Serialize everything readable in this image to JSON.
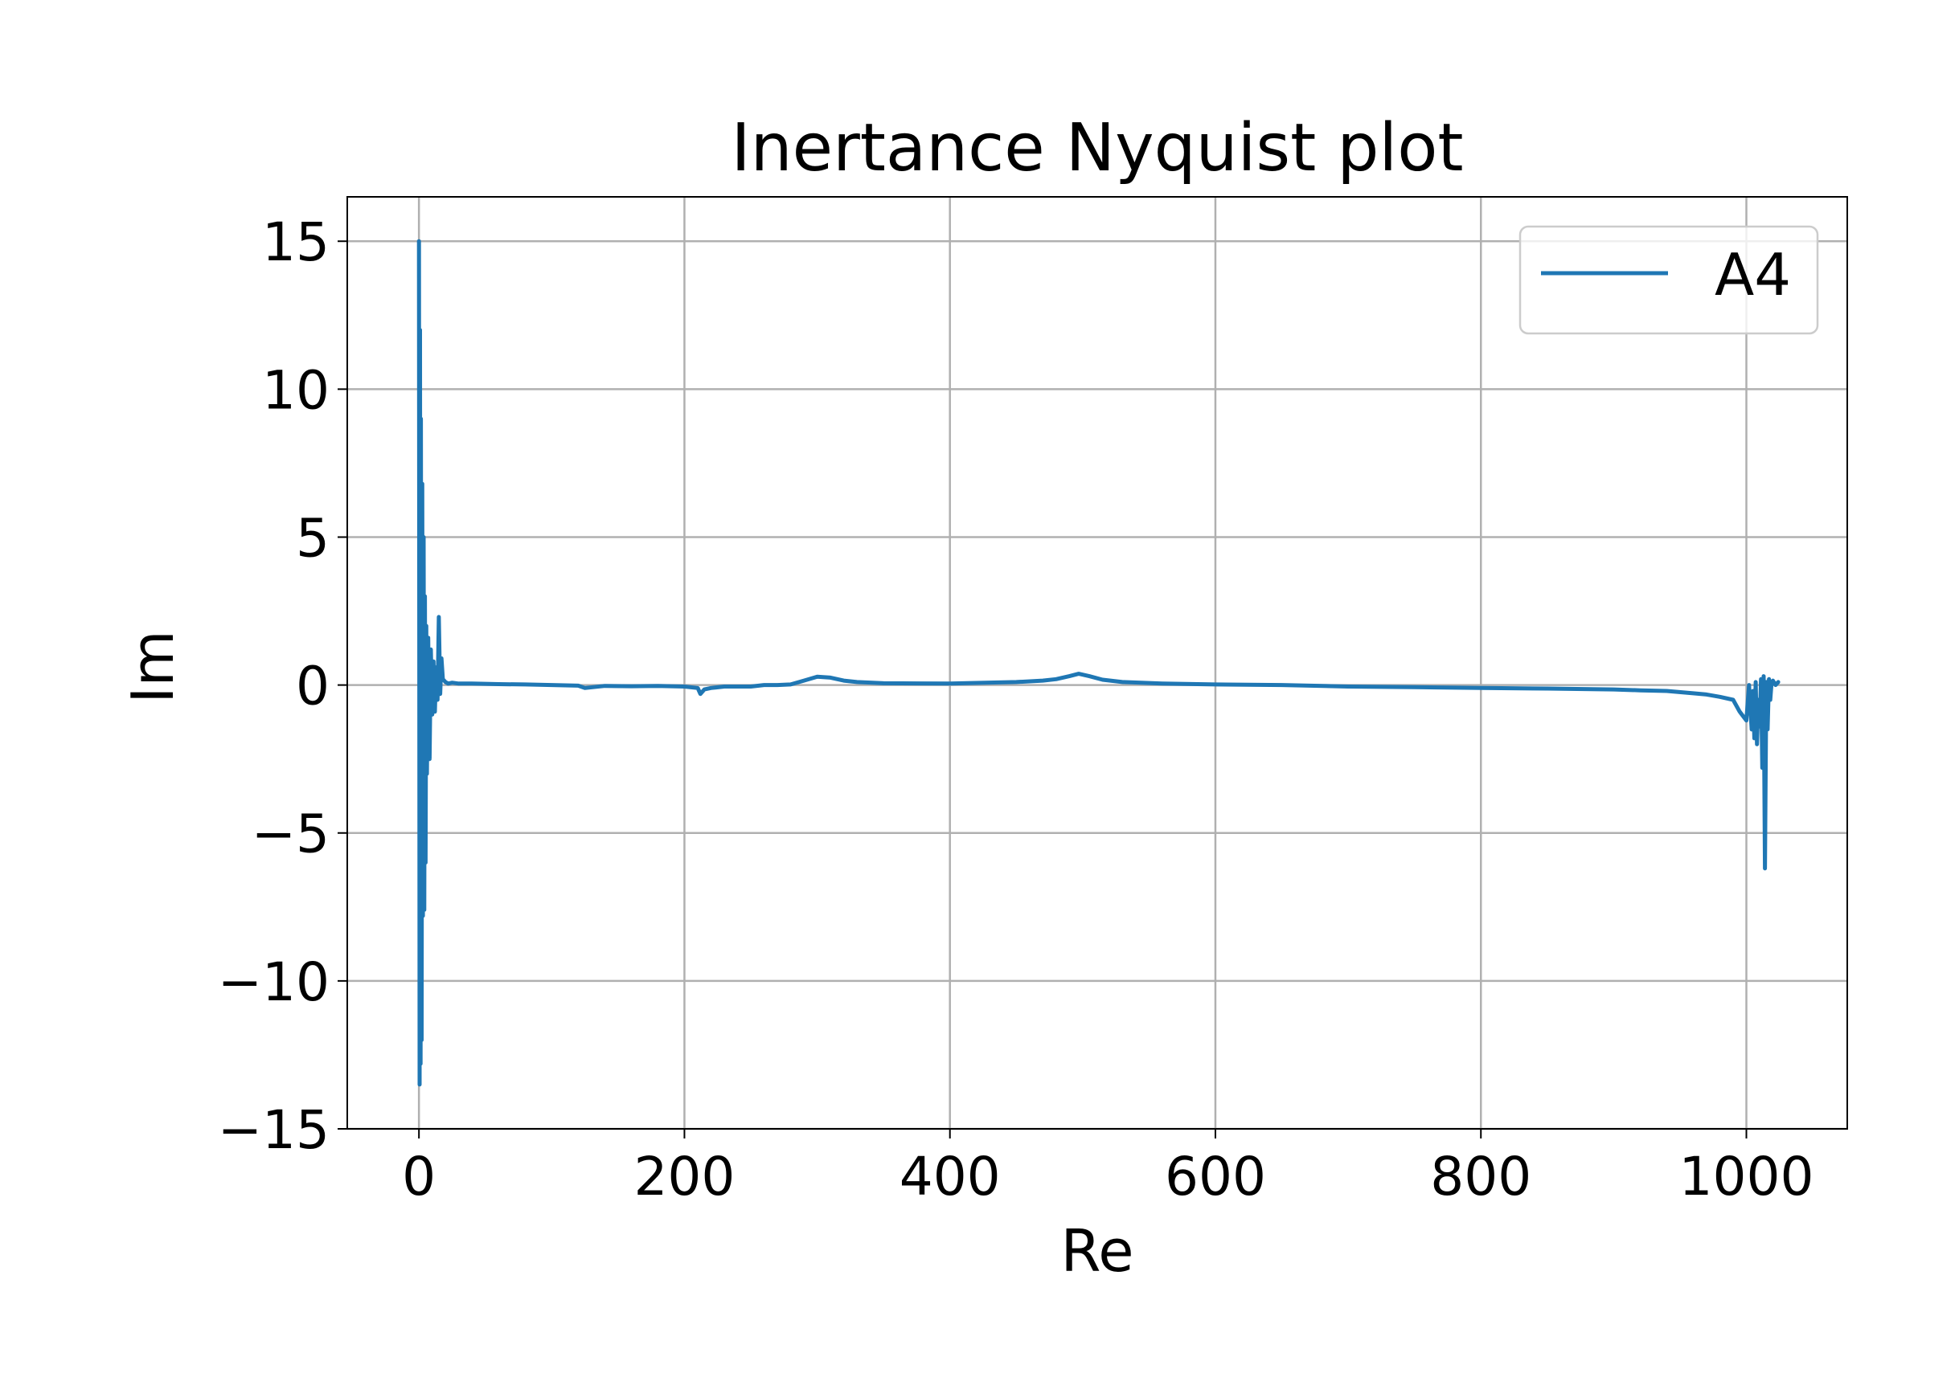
{
  "chart_data": {
    "type": "line",
    "title": "Inertance Nyquist plot",
    "xlabel": "Re",
    "ylabel": "Im",
    "xlim": [
      -54,
      1076
    ],
    "ylim": [
      -15,
      16.5
    ],
    "xticks": [
      0,
      200,
      400,
      600,
      800,
      1000
    ],
    "xtick_labels": [
      "0",
      "200",
      "400",
      "600",
      "800",
      "1000"
    ],
    "yticks": [
      -15,
      -10,
      -5,
      0,
      5,
      10,
      15
    ],
    "ytick_labels": [
      "−15",
      "−10",
      "−5",
      "0",
      "5",
      "10",
      "15"
    ],
    "grid": true,
    "legend_position": "top-right",
    "series": [
      {
        "name": "A4",
        "color": "#1f77b4",
        "x": [
          0,
          0.5,
          0.8,
          1.2,
          1.5,
          2,
          2.5,
          3,
          3.5,
          4,
          4.5,
          5,
          5.5,
          6,
          7,
          8,
          9,
          10,
          11,
          12,
          13,
          14,
          15,
          16,
          17,
          18,
          20,
          22,
          25,
          30,
          40,
          60,
          80,
          100,
          120,
          125,
          140,
          160,
          180,
          200,
          210,
          212,
          215,
          220,
          230,
          240,
          250,
          260,
          270,
          280,
          290,
          300,
          310,
          320,
          330,
          350,
          400,
          450,
          470,
          480,
          490,
          497,
          505,
          515,
          530,
          560,
          600,
          650,
          700,
          750,
          800,
          850,
          900,
          920,
          940,
          960,
          970,
          980,
          990,
          995,
          1000,
          1002,
          1004,
          1005,
          1006,
          1007,
          1008,
          1009,
          1010,
          1011,
          1012,
          1013,
          1014,
          1015,
          1016,
          1017,
          1018,
          1019,
          1020,
          1022,
          1024
        ],
        "y": [
          15.0,
          -13.5,
          12.0,
          -12.8,
          9.0,
          -12.0,
          6.8,
          -7.8,
          5.0,
          -7.6,
          3.0,
          -6.0,
          2.0,
          -3.0,
          1.6,
          -2.5,
          1.2,
          -1.0,
          0.8,
          -0.9,
          0.6,
          -0.5,
          2.3,
          -0.3,
          0.9,
          0.2,
          0.1,
          0.05,
          0.08,
          0.05,
          0.05,
          0.03,
          0.02,
          0.0,
          -0.02,
          -0.1,
          -0.03,
          -0.04,
          -0.03,
          -0.05,
          -0.1,
          -0.3,
          -0.15,
          -0.1,
          -0.05,
          -0.05,
          -0.05,
          0.0,
          0.0,
          0.02,
          0.15,
          0.28,
          0.25,
          0.15,
          0.1,
          0.06,
          0.05,
          0.1,
          0.15,
          0.2,
          0.3,
          0.38,
          0.3,
          0.18,
          0.1,
          0.05,
          0.02,
          0.0,
          -0.05,
          -0.07,
          -0.1,
          -0.12,
          -0.15,
          -0.18,
          -0.2,
          -0.28,
          -0.32,
          -0.4,
          -0.5,
          -0.9,
          -1.2,
          0.0,
          -1.5,
          -0.2,
          -1.8,
          0.1,
          -2.0,
          -0.5,
          -1.4,
          0.2,
          -2.8,
          0.3,
          -6.2,
          0.1,
          -1.5,
          0.2,
          -0.5,
          0.1,
          0.15,
          0.0,
          0.1
        ]
      }
    ]
  }
}
